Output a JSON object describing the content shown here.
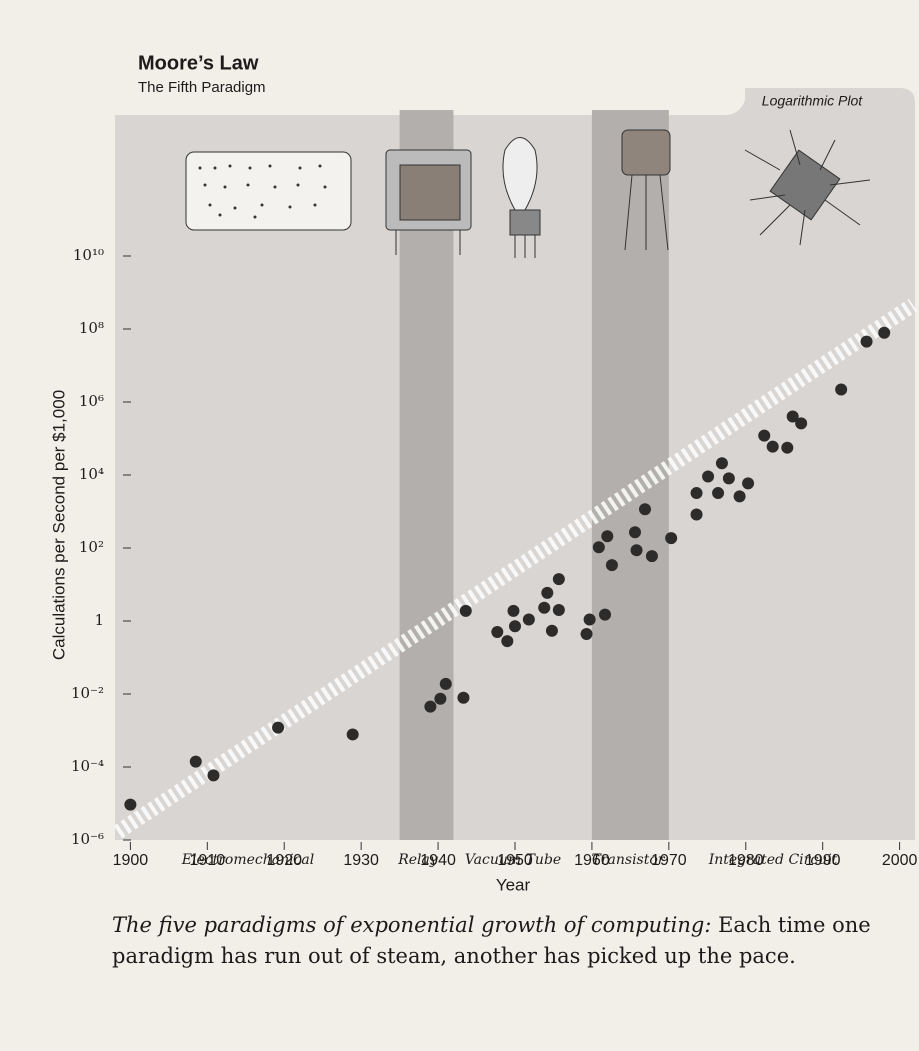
{
  "chart_data": {
    "type": "scatter",
    "title": "Moore’s Law",
    "subtitle": "The Fifth Paradigm",
    "annotation": "Logarithmic Plot",
    "xlabel": "Year",
    "ylabel": "Calculations per Second per $1,000",
    "log_y": true,
    "color": "#2e2c2b",
    "x": [
      1900,
      1908.5,
      1910.8,
      1919.2,
      1928.9,
      1939,
      1940.3,
      1941,
      1943.3,
      1943.6,
      1947.7,
      1949,
      1949.8,
      1950,
      1951.8,
      1953.8,
      1954.2,
      1954.8,
      1955.7,
      1955.7,
      1959.3,
      1959.7,
      1960.9,
      1961.7,
      1962,
      1962.6,
      1965.6,
      1965.8,
      1966.9,
      1967.8,
      1970.3,
      1973.6,
      1973.6,
      1975.1,
      1976.4,
      1976.9,
      1977.8,
      1979.2,
      1980.3,
      1982.4,
      1983.5,
      1985.4,
      1986.1,
      1987.2,
      1992.4,
      1995.7,
      1998
    ],
    "values": [
      9.3e-06,
      0.00014,
      5.9e-05,
      0.0012,
      0.00078,
      0.0045,
      0.0074,
      0.019,
      0.0079,
      1.9,
      0.5,
      0.28,
      1.9,
      0.72,
      1.1,
      2.3,
      5.9,
      0.54,
      14,
      2.0,
      0.44,
      1.1,
      105,
      1.5,
      210,
      34,
      270,
      87,
      1150,
      60,
      186,
      830,
      3200,
      9100,
      3200,
      21000,
      8100,
      2600,
      5900,
      120000,
      60000,
      56000,
      400000,
      260000,
      2200000,
      45000000,
      79000000
    ],
    "xlim": [
      1898,
      2002
    ],
    "xticks": [
      1900,
      1910,
      1920,
      1930,
      1940,
      1950,
      1960,
      1970,
      1980,
      1990,
      2000
    ],
    "ylim": [
      1e-06,
      100000000000000
    ],
    "yticks": [
      {
        "value": 1e-06,
        "label": "10⁻⁶"
      },
      {
        "value": 0.0001,
        "label": "10⁻⁴"
      },
      {
        "value": 0.01,
        "label": "10⁻²"
      },
      1,
      {
        "value": 100,
        "label": "10²"
      },
      {
        "value": 10000,
        "label": "10⁴"
      },
      {
        "value": 1000000,
        "label": "10⁶"
      },
      {
        "value": 100000000,
        "label": "10⁸"
      },
      {
        "value": 10000000000,
        "label": "10¹⁰"
      }
    ],
    "shaded_bands": [
      [
        1935,
        1942
      ],
      [
        1960,
        1970
      ]
    ],
    "paradigms": [
      "Electromechanical",
      "Relay",
      "Vacuum Tube",
      "Transistor",
      "Integrated Circuit"
    ],
    "caption_lead": "The five paradigms of exponential growth of computing:",
    "caption": "Each time one paradigm has run out of steam, another has picked up the pace."
  }
}
